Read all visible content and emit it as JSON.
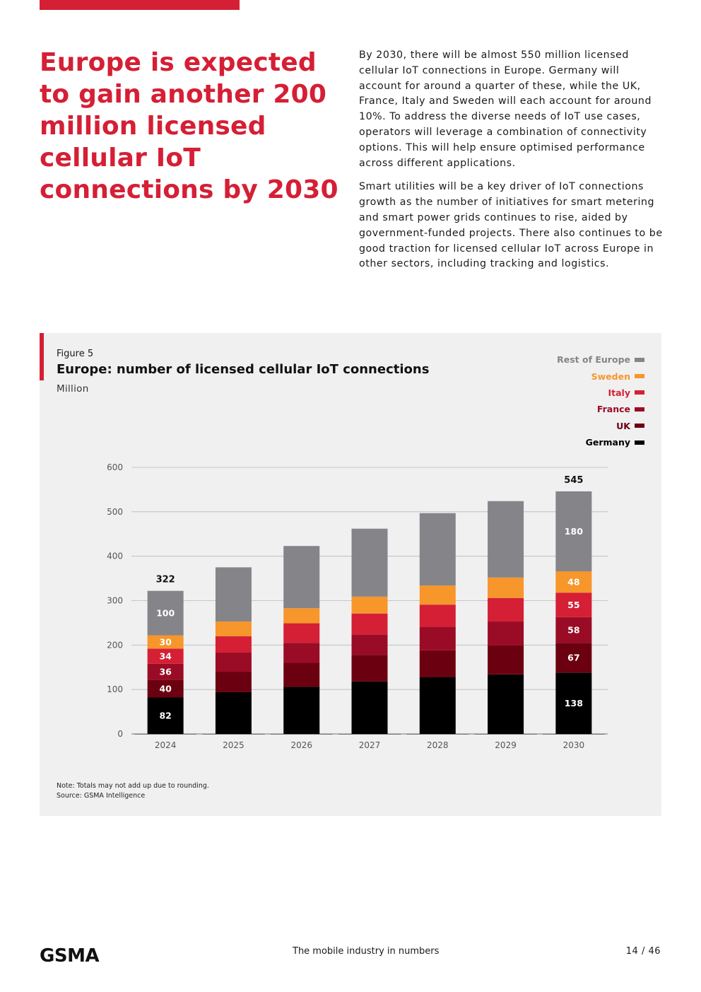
{
  "headline": "Europe is expected to gain another 200 million licensed cellular IoT connections by 2030",
  "intro": {
    "paragraph_1": "By 2030, there will be almost 550 million licensed cellular IoT connections in Europe. Germany will account for around a quarter of these, while the UK, France, Italy and Sweden will each account for around 10%. To address the diverse needs of IoT use cases, operators will leverage a combination of connectivity options. This will help ensure optimised performance across different applications.",
    "paragraph_2": "Smart utilities will be a key driver of IoT connections growth as the number of initiatives for smart metering and smart power grids continues to rise, aided by government-funded projects. There also continues to be good traction for licensed cellular IoT across Europe in other sectors, including tracking and logistics."
  },
  "figure": {
    "label": "Figure 5",
    "title": "Europe: number of licensed cellular IoT connections",
    "unit": "Million",
    "note": "Note: Totals may not add up due to rounding.",
    "source": "Source: GSMA Intelligence"
  },
  "chart_data": {
    "type": "bar",
    "stacked": true,
    "title": "Europe: number of licensed cellular IoT connections",
    "ylabel": "Million",
    "xlabel": "",
    "ylim": [
      0,
      600
    ],
    "yticks": [
      0,
      100,
      200,
      300,
      400,
      500,
      600
    ],
    "grid": true,
    "legend_position": "top-right",
    "categories": [
      "2024",
      "2025",
      "2026",
      "2027",
      "2028",
      "2029",
      "2030"
    ],
    "series": [
      {
        "name": "Germany",
        "color": "#000000",
        "values": [
          82,
          94,
          106,
          118,
          128,
          134,
          138
        ]
      },
      {
        "name": "UK",
        "color": "#6b0010",
        "values": [
          40,
          46,
          54,
          60,
          60,
          65,
          67
        ]
      },
      {
        "name": "France",
        "color": "#9a0c26",
        "values": [
          36,
          43,
          45,
          46,
          53,
          54,
          58
        ]
      },
      {
        "name": "Italy",
        "color": "#d51f35",
        "values": [
          34,
          37,
          44,
          47,
          50,
          53,
          55
        ]
      },
      {
        "name": "Sweden",
        "color": "#f7962b",
        "values": [
          30,
          33,
          34,
          38,
          43,
          46,
          48
        ]
      },
      {
        "name": "Rest of Europe",
        "color": "#858589",
        "values": [
          100,
          122,
          140,
          153,
          163,
          172,
          180
        ]
      }
    ],
    "data_labels": {
      "2024": [
        "82",
        "40",
        "36",
        "34",
        "30",
        "100"
      ],
      "2030": [
        "138",
        "67",
        "58",
        "55",
        "48",
        "180"
      ]
    },
    "totals": {
      "2024": "322",
      "2030": "545"
    }
  },
  "legend_order": [
    "Rest of Europe",
    "Sweden",
    "Italy",
    "France",
    "UK",
    "Germany"
  ],
  "legend_text_colors": {
    "Rest of Europe": "#858589",
    "Sweden": "#f7962b",
    "Italy": "#d51f35",
    "France": "#9a0c26",
    "UK": "#6b0010",
    "Germany": "#000000"
  },
  "footer": {
    "logo": "GSMA",
    "center_text": "The mobile industry in numbers",
    "page": "14 / 46"
  }
}
